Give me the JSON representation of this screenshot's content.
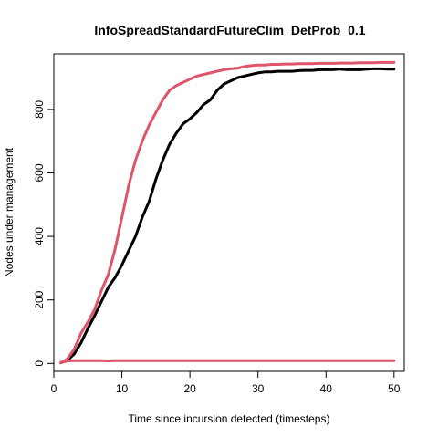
{
  "chart_data": {
    "type": "line",
    "title": "InfoSpreadStandardFutureClim_DetProb_0.1",
    "xlabel": "Time since incursion detected (timesteps)",
    "ylabel": "Nodes under management",
    "xlim": [
      0,
      51.5
    ],
    "ylim": [
      -25,
      975
    ],
    "xticks": [
      0,
      10,
      20,
      30,
      40,
      50
    ],
    "yticks": [
      0,
      200,
      400,
      600,
      800
    ],
    "grid": false,
    "legend": "none",
    "series": [
      {
        "color": "#000000",
        "x": [
          1,
          2,
          3,
          4,
          5,
          6,
          7,
          8,
          9,
          10,
          11,
          12,
          13,
          14,
          15,
          16,
          17,
          18,
          19,
          20,
          21,
          22,
          23,
          24,
          25,
          26,
          27,
          28,
          29,
          30,
          31,
          32,
          33,
          34,
          35,
          36,
          37,
          38,
          39,
          40,
          41,
          42,
          43,
          44,
          45,
          46,
          47,
          48,
          49,
          50
        ],
        "y": [
          2,
          10,
          30,
          65,
          110,
          150,
          195,
          240,
          270,
          310,
          355,
          400,
          460,
          510,
          580,
          640,
          690,
          725,
          755,
          770,
          790,
          815,
          830,
          860,
          880,
          890,
          900,
          905,
          910,
          915,
          918,
          918,
          920,
          920,
          920,
          922,
          923,
          923,
          925,
          925,
          925,
          927,
          925,
          925,
          925,
          927,
          928,
          928,
          927,
          927
        ]
      },
      {
        "color": "#df536b",
        "x": [
          1,
          2,
          3,
          4,
          5,
          6,
          7,
          8,
          9,
          10,
          11,
          12,
          13,
          14,
          15,
          16,
          17,
          18,
          19,
          20,
          21,
          22,
          23,
          24,
          25,
          26,
          27,
          28,
          29,
          30,
          31,
          32,
          33,
          34,
          35,
          36,
          37,
          38,
          39,
          40,
          41,
          42,
          43,
          44,
          45,
          46,
          47,
          48,
          49,
          50
        ],
        "y": [
          2,
          15,
          45,
          95,
          130,
          170,
          230,
          280,
          360,
          460,
          560,
          640,
          700,
          750,
          790,
          830,
          860,
          875,
          885,
          895,
          905,
          910,
          915,
          920,
          925,
          928,
          930,
          935,
          938,
          940,
          940,
          942,
          942,
          943,
          943,
          944,
          944,
          944,
          945,
          945,
          945,
          946,
          946,
          946,
          947,
          947,
          947,
          948,
          948,
          948
        ]
      },
      {
        "color": "#df536b",
        "x": [
          1,
          2,
          3,
          4,
          5,
          6,
          7,
          8,
          9,
          10,
          11,
          12,
          13,
          14,
          15,
          16,
          17,
          18,
          19,
          20,
          21,
          22,
          23,
          24,
          25,
          26,
          27,
          28,
          29,
          30,
          31,
          32,
          33,
          34,
          35,
          36,
          37,
          38,
          39,
          40,
          41,
          42,
          43,
          44,
          45,
          46,
          47,
          48,
          49,
          50
        ],
        "y": [
          2,
          8,
          9,
          9,
          9,
          9,
          9,
          8,
          9,
          9,
          9,
          9,
          9,
          9,
          9,
          9,
          9,
          9,
          9,
          9,
          9,
          9,
          9,
          9,
          9,
          9,
          9,
          9,
          9,
          9,
          9,
          9,
          9,
          9,
          9,
          9,
          9,
          9,
          9,
          9,
          9,
          9,
          9,
          9,
          9,
          9,
          9,
          9,
          9,
          9
        ]
      }
    ]
  }
}
